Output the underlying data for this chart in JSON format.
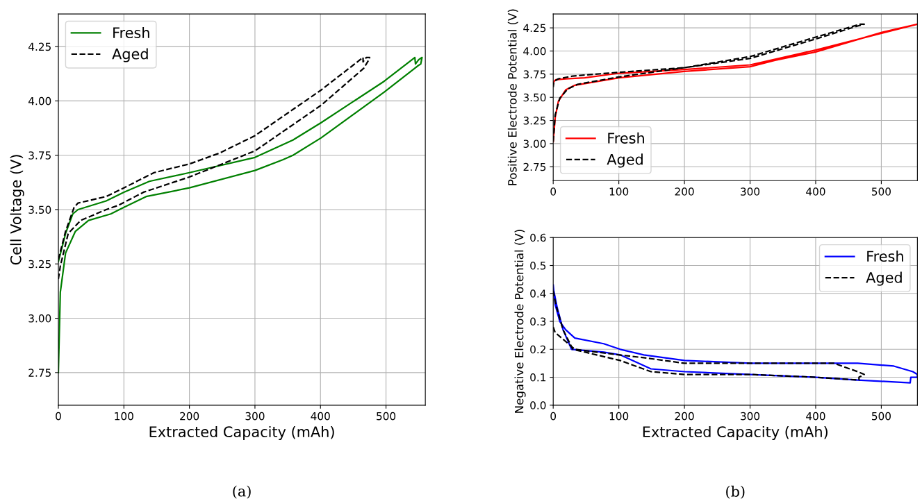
{
  "chart_data": [
    {
      "type": "line",
      "xlabel": "Extracted Capacity (mAh)",
      "ylabel": "Cell Voltage (V)",
      "annotations": [
        "(a)"
      ],
      "xlim": [
        0,
        560
      ],
      "ylim": [
        2.6,
        4.4
      ],
      "xticks": [
        0,
        100,
        200,
        300,
        400,
        500
      ],
      "yticks": [
        {
          "value": 2.75,
          "label": "2.75"
        },
        {
          "value": 3.0,
          "label": "3.00"
        },
        {
          "value": 3.25,
          "label": "3.25"
        },
        {
          "value": 3.5,
          "label": "3.50"
        },
        {
          "value": 3.75,
          "label": "3.75"
        },
        {
          "value": 4.0,
          "label": "4.00"
        },
        {
          "value": 4.25,
          "label": "4.25"
        }
      ],
      "grid": true,
      "legend": "top left",
      "marker": "none",
      "series": [
        {
          "name": "Fresh",
          "color": "#008000",
          "line_style": "solid",
          "x": [
            0,
            3,
            11,
            26,
            46,
            80,
            100,
            134,
            200,
            300,
            343,
            358,
            401,
            497,
            548,
            553,
            555,
            550,
            545,
            544,
            544,
            497,
            401,
            358,
            300,
            200,
            139,
            100,
            73,
            30,
            22,
            11,
            0
          ],
          "values": [
            2.75,
            3.12,
            3.3,
            3.4,
            3.45,
            3.48,
            3.51,
            3.56,
            3.6,
            3.68,
            3.73,
            3.75,
            3.83,
            4.04,
            4.16,
            4.17,
            4.2,
            4.19,
            4.17,
            4.2,
            4.2,
            4.09,
            3.9,
            3.82,
            3.74,
            3.67,
            3.63,
            3.58,
            3.54,
            3.5,
            3.48,
            3.39,
            3.26
          ]
        },
        {
          "name": "Aged",
          "color": "#000000",
          "line_style": "dashed",
          "x": [
            0,
            3,
            15,
            34,
            73,
            92,
            130,
            200,
            300,
            401,
            466,
            474,
            475,
            470,
            465,
            465,
            401,
            300,
            246,
            200,
            146,
            100,
            73,
            30,
            24,
            11,
            0
          ],
          "values": [
            3.18,
            3.24,
            3.39,
            3.45,
            3.5,
            3.52,
            3.58,
            3.65,
            3.77,
            3.98,
            4.15,
            4.19,
            4.2,
            4.2,
            4.18,
            4.2,
            4.05,
            3.84,
            3.76,
            3.71,
            3.67,
            3.6,
            3.56,
            3.53,
            3.51,
            3.4,
            3.27
          ]
        }
      ]
    },
    {
      "type": "line",
      "ylabel": "Positive Electrode Potential (V)",
      "xlim": [
        0,
        555
      ],
      "ylim": [
        2.6,
        4.4
      ],
      "xticks": [
        0,
        100,
        200,
        300,
        400,
        500
      ],
      "yticks": [
        {
          "value": 2.75,
          "label": "2.75"
        },
        {
          "value": 3.0,
          "label": "3.00"
        },
        {
          "value": 3.25,
          "label": "3.25"
        },
        {
          "value": 3.5,
          "label": "3.50"
        },
        {
          "value": 3.75,
          "label": "3.75"
        },
        {
          "value": 4.0,
          "label": "4.00"
        },
        {
          "value": 4.25,
          "label": "4.25"
        }
      ],
      "grid": true,
      "legend": "bottom left",
      "marker": "none",
      "series": [
        {
          "name": "Fresh",
          "color": "#ff0000",
          "line_style": "solid",
          "x": [
            0,
            3,
            8,
            19,
            33,
            100,
            200,
            300,
            338,
            400,
            500,
            555,
            400,
            300,
            200,
            100,
            48,
            19,
            4,
            1,
            0
          ],
          "values": [
            3.02,
            3.28,
            3.46,
            3.58,
            3.63,
            3.71,
            3.78,
            3.83,
            3.9,
            3.99,
            4.2,
            4.29,
            4.01,
            3.85,
            3.8,
            3.76,
            3.71,
            3.7,
            3.69,
            3.67,
            3.64
          ]
        },
        {
          "name": "Aged",
          "color": "#000000",
          "line_style": "dashed",
          "x": [
            0,
            3,
            10,
            22,
            37,
            100,
            200,
            300,
            338,
            400,
            464,
            474,
            468,
            400,
            338,
            300,
            200,
            100,
            30,
            8,
            1,
            0
          ],
          "values": [
            3.02,
            3.31,
            3.49,
            3.59,
            3.64,
            3.72,
            3.82,
            3.92,
            4.0,
            4.13,
            4.27,
            4.29,
            4.29,
            4.15,
            4.02,
            3.94,
            3.82,
            3.77,
            3.73,
            3.7,
            3.67,
            3.61
          ]
        }
      ]
    },
    {
      "type": "line",
      "xlabel": "Extracted Capacity (mAh)",
      "ylabel": "Negative Electrode Potential (V)",
      "annotations": [
        "(b)"
      ],
      "xlim": [
        0,
        555
      ],
      "ylim": [
        0,
        0.6
      ],
      "xticks": [
        0,
        100,
        200,
        300,
        400,
        500
      ],
      "yticks": [
        {
          "value": 0,
          "label": "0.0"
        },
        0.1,
        0.2,
        0.3,
        0.4,
        0.5,
        0.6
      ],
      "grid": true,
      "legend": "top right",
      "marker": "none",
      "series": [
        {
          "name": "Fresh",
          "color": "#0000ff",
          "line_style": "solid",
          "x": [
            0,
            3,
            10,
            19,
            33,
            77,
            102,
            138,
            200,
            300,
            374,
            464,
            519,
            548,
            555,
            555,
            545,
            544,
            464,
            400,
            300,
            200,
            149,
            102,
            77,
            28,
            15,
            6,
            0
          ],
          "values": [
            0.43,
            0.36,
            0.3,
            0.27,
            0.24,
            0.22,
            0.2,
            0.18,
            0.16,
            0.15,
            0.15,
            0.15,
            0.14,
            0.12,
            0.11,
            0.1,
            0.1,
            0.08,
            0.09,
            0.1,
            0.11,
            0.12,
            0.13,
            0.18,
            0.19,
            0.2,
            0.27,
            0.35,
            0.42
          ]
        },
        {
          "name": "Aged",
          "color": "#000000",
          "line_style": "dashed",
          "x": [
            0,
            3,
            33,
            66,
            100,
            138,
            200,
            300,
            374,
            428,
            464,
            474,
            466,
            466,
            400,
            300,
            200,
            149,
            102,
            66,
            30,
            15,
            4,
            0
          ],
          "values": [
            0.28,
            0.26,
            0.2,
            0.19,
            0.18,
            0.17,
            0.15,
            0.15,
            0.15,
            0.15,
            0.12,
            0.11,
            0.1,
            0.09,
            0.1,
            0.11,
            0.11,
            0.12,
            0.16,
            0.18,
            0.2,
            0.27,
            0.36,
            0.41
          ]
        }
      ]
    }
  ]
}
